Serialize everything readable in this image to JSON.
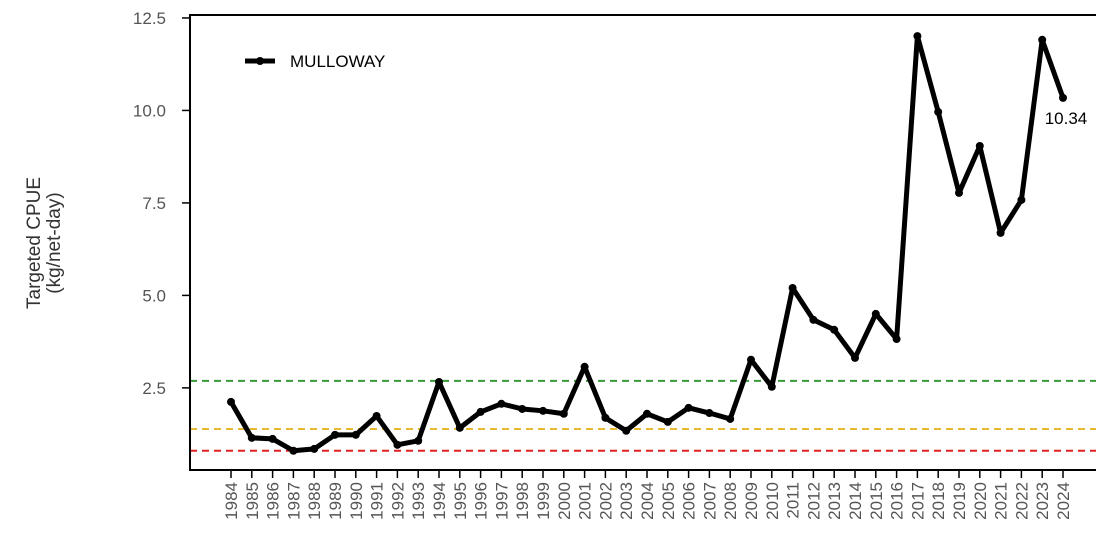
{
  "chart_data": {
    "type": "line",
    "ylabel": [
      "Targeted CPUE",
      "(kg/net-day)"
    ],
    "categories": [
      "1984",
      "1985",
      "1986",
      "1987",
      "1988",
      "1989",
      "1990",
      "1991",
      "1992",
      "1993",
      "1994",
      "1995",
      "1996",
      "1997",
      "1998",
      "1999",
      "2000",
      "2001",
      "2002",
      "2003",
      "2004",
      "2005",
      "2006",
      "2007",
      "2008",
      "2009",
      "2010",
      "2011",
      "2012",
      "2013",
      "2014",
      "2015",
      "2016",
      "2017",
      "2018",
      "2019",
      "2020",
      "2021",
      "2022",
      "2023",
      "2024"
    ],
    "series": [
      {
        "name": "MULLOWAY",
        "color": "#000000",
        "values": [
          2.12,
          1.15,
          1.12,
          0.8,
          0.85,
          1.23,
          1.23,
          1.74,
          0.96,
          1.07,
          2.66,
          1.42,
          1.85,
          2.07,
          1.93,
          1.88,
          1.8,
          3.07,
          1.69,
          1.34,
          1.8,
          1.58,
          1.96,
          1.82,
          1.66,
          3.26,
          2.53,
          5.2,
          4.34,
          4.07,
          3.31,
          4.5,
          3.82,
          12.01,
          9.96,
          7.77,
          9.04,
          6.69,
          7.58,
          11.91,
          10.34
        ]
      }
    ],
    "reference_lines": [
      {
        "value": 2.69,
        "color": "#3a9a3a"
      },
      {
        "value": 1.39,
        "color": "#e8b830"
      },
      {
        "value": 0.8,
        "color": "#e02020"
      }
    ],
    "ylim": [
      0.28,
      12.58
    ],
    "yticks": [
      {
        "value": 2.5,
        "label": "2.5"
      },
      {
        "value": 5,
        "label": "5.0"
      },
      7.5,
      {
        "value": 10,
        "label": "10.0"
      },
      12.5
    ],
    "legend": "top-left"
  }
}
